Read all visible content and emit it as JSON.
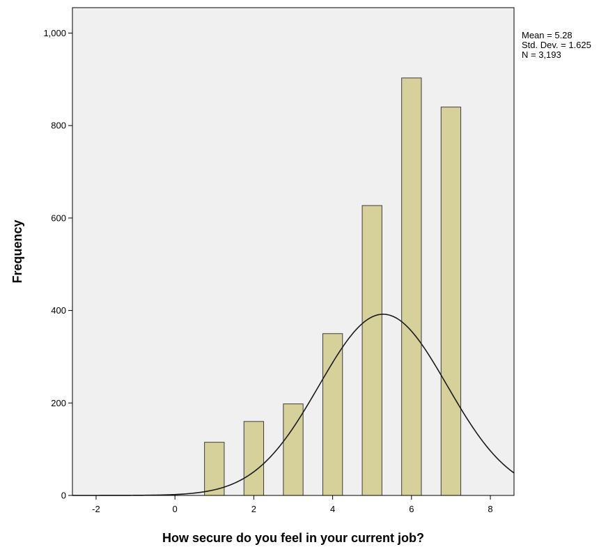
{
  "chart_data": {
    "type": "bar",
    "subtype": "histogram",
    "xlabel": "How secure do you feel in your current job?",
    "ylabel": "Frequency",
    "xlim": [
      -2.6,
      8.6
    ],
    "ylim": [
      0,
      1055
    ],
    "x_ticks": [
      -2,
      0,
      2,
      4,
      6,
      8
    ],
    "x_tick_labels": [
      "-2",
      "0",
      "2",
      "4",
      "6",
      "8"
    ],
    "y_ticks": [
      0,
      200,
      400,
      600,
      800,
      1000
    ],
    "y_tick_labels": [
      "0",
      "200",
      "400",
      "600",
      "800",
      "1,000"
    ],
    "bin_width": 0.5,
    "bins": [
      {
        "x": 1,
        "value": 115
      },
      {
        "x": 2,
        "value": 160
      },
      {
        "x": 3,
        "value": 198
      },
      {
        "x": 4,
        "value": 350
      },
      {
        "x": 5,
        "value": 627
      },
      {
        "x": 6,
        "value": 903
      },
      {
        "x": 7,
        "value": 840
      }
    ],
    "normal_curve": {
      "mean": 5.28,
      "std_dev": 1.625,
      "n": 3193
    },
    "grid": false,
    "colors": {
      "bar_fill": "#d6d19b",
      "bar_stroke": "#3c3c3c",
      "plot_bg": "#f0f0f0",
      "curve": "#1a1a1a"
    },
    "stats_lines": [
      "Mean = 5.28",
      "Std. Dev. = 1.625",
      "N = 3,193"
    ]
  }
}
